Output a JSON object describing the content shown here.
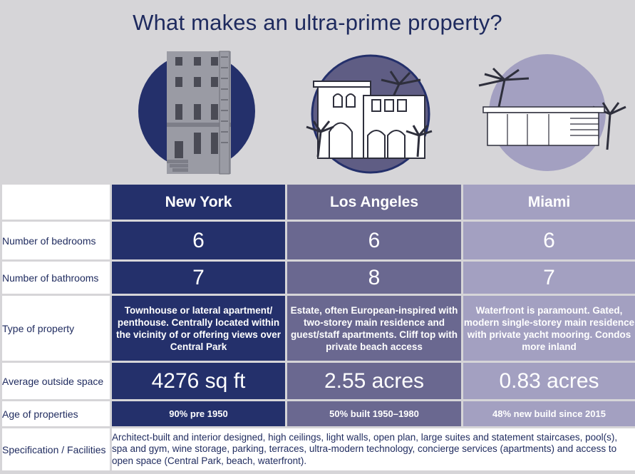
{
  "title": "What makes an ultra-prime property?",
  "colors": {
    "background": "#d6d5d8",
    "new_york": "#24306b",
    "los_angeles": "#6a6890",
    "miami": "#a3a0c1",
    "text_dark": "#1e2a5e"
  },
  "illustrations": [
    {
      "city": "New York",
      "icon": "townhouse-icon"
    },
    {
      "city": "Los Angeles",
      "icon": "estate-villa-icon"
    },
    {
      "city": "Miami",
      "icon": "waterfront-house-icon"
    }
  ],
  "columns": [
    "New York",
    "Los Angeles",
    "Miami"
  ],
  "rows": {
    "bedrooms": {
      "label": "Number of bedrooms",
      "values": [
        "6",
        "6",
        "6"
      ]
    },
    "bathrooms": {
      "label": "Number of bathrooms",
      "values": [
        "7",
        "8",
        "7"
      ]
    },
    "type": {
      "label": "Type of property",
      "values": [
        "Townhouse or lateral apartment/ penthouse. Centrally located within the vicinity of or offering views over Central Park",
        "Estate, often European-inspired with two-storey main residence and guest/staff apartments. Cliff top with private beach access",
        "Waterfront is paramount. Gated, modern single-storey main residence with private yacht mooring. Condos more inland"
      ]
    },
    "outside_space": {
      "label": "Average outside space",
      "values": [
        "4276 sq ft",
        "2.55 acres",
        "0.83 acres"
      ]
    },
    "age": {
      "label": "Age of properties",
      "values": [
        "90% pre 1950",
        "50% built 1950–1980",
        "48% new build since 2015"
      ]
    },
    "specification": {
      "label": "Specification / Facilities",
      "value": "Architect-built and interior designed, high ceilings, light walls, open plan, large suites and statement staircases, pool(s), spa and gym, wine storage, parking, terraces, ultra-modern technology, concierge services (apartments) and access to open space (Central Park, beach, waterfront)."
    }
  }
}
